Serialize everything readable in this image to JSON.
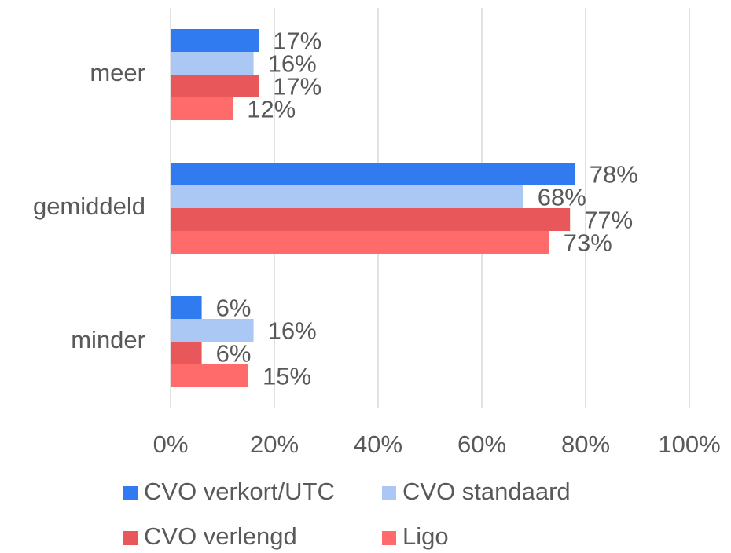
{
  "chart_data": {
    "type": "hbar",
    "categories": [
      "meer",
      "gemiddeld",
      "minder"
    ],
    "series": [
      {
        "name": "CVO verkort/UTC",
        "color": "#2f7bef",
        "values": [
          17,
          78,
          6
        ],
        "value_labels": [
          "17%",
          "78%",
          "6%"
        ]
      },
      {
        "name": "CVO standaard",
        "color": "#abc8f5",
        "values": [
          16,
          68,
          16
        ],
        "value_labels": [
          "16%",
          "68%",
          "16%"
        ]
      },
      {
        "name": "CVO verlengd",
        "color": "#e8585a",
        "values": [
          17,
          77,
          6
        ],
        "value_labels": [
          "17%",
          "77%",
          "6%"
        ]
      },
      {
        "name": "Ligo",
        "color": "#ff6b6b",
        "values": [
          12,
          73,
          15
        ],
        "value_labels": [
          "12%",
          "73%",
          "15%"
        ]
      }
    ],
    "xlim": [
      0,
      100
    ],
    "xticks": [
      {
        "value": 0,
        "label": "0%"
      },
      {
        "value": 20,
        "label": "20%"
      },
      {
        "value": 40,
        "label": "40%"
      },
      {
        "value": 60,
        "label": "60%"
      },
      {
        "value": 80,
        "label": "80%"
      },
      {
        "value": 100,
        "label": "100%"
      }
    ],
    "grid": true,
    "legend": "bottom"
  }
}
